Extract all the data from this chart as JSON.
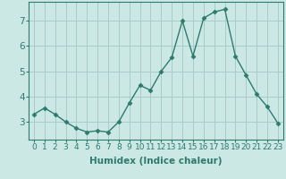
{
  "title": "",
  "xlabel": "Humidex (Indice chaleur)",
  "ylabel": "",
  "x": [
    0,
    1,
    2,
    3,
    4,
    5,
    6,
    7,
    8,
    9,
    10,
    11,
    12,
    13,
    14,
    15,
    16,
    17,
    18,
    19,
    20,
    21,
    22,
    23
  ],
  "y": [
    3.3,
    3.55,
    3.3,
    3.0,
    2.75,
    2.6,
    2.65,
    2.6,
    3.0,
    3.75,
    4.45,
    4.25,
    5.0,
    5.55,
    7.0,
    5.6,
    7.1,
    7.35,
    7.45,
    5.6,
    4.85,
    4.1,
    3.6,
    2.95
  ],
  "line_color": "#2d7a6e",
  "marker": "D",
  "marker_size": 2.5,
  "bg_color": "#cce8e4",
  "grid_color": "#a8ccc8",
  "axis_color": "#2d7a6e",
  "tick_color": "#2d7a6e",
  "label_color": "#2d7a6e",
  "ylim": [
    2.3,
    7.75
  ],
  "xlim": [
    -0.5,
    23.5
  ],
  "yticks": [
    3,
    4,
    5,
    6,
    7
  ],
  "xticks": [
    0,
    1,
    2,
    3,
    4,
    5,
    6,
    7,
    8,
    9,
    10,
    11,
    12,
    13,
    14,
    15,
    16,
    17,
    18,
    19,
    20,
    21,
    22,
    23
  ],
  "xtick_labels": [
    "0",
    "1",
    "2",
    "3",
    "4",
    "5",
    "6",
    "7",
    "8",
    "9",
    "10",
    "11",
    "12",
    "13",
    "14",
    "15",
    "16",
    "17",
    "18",
    "19",
    "20",
    "21",
    "22",
    "23"
  ],
  "xlabel_fontsize": 7.5,
  "tick_fontsize": 6.5,
  "ytick_fontsize": 7.5
}
